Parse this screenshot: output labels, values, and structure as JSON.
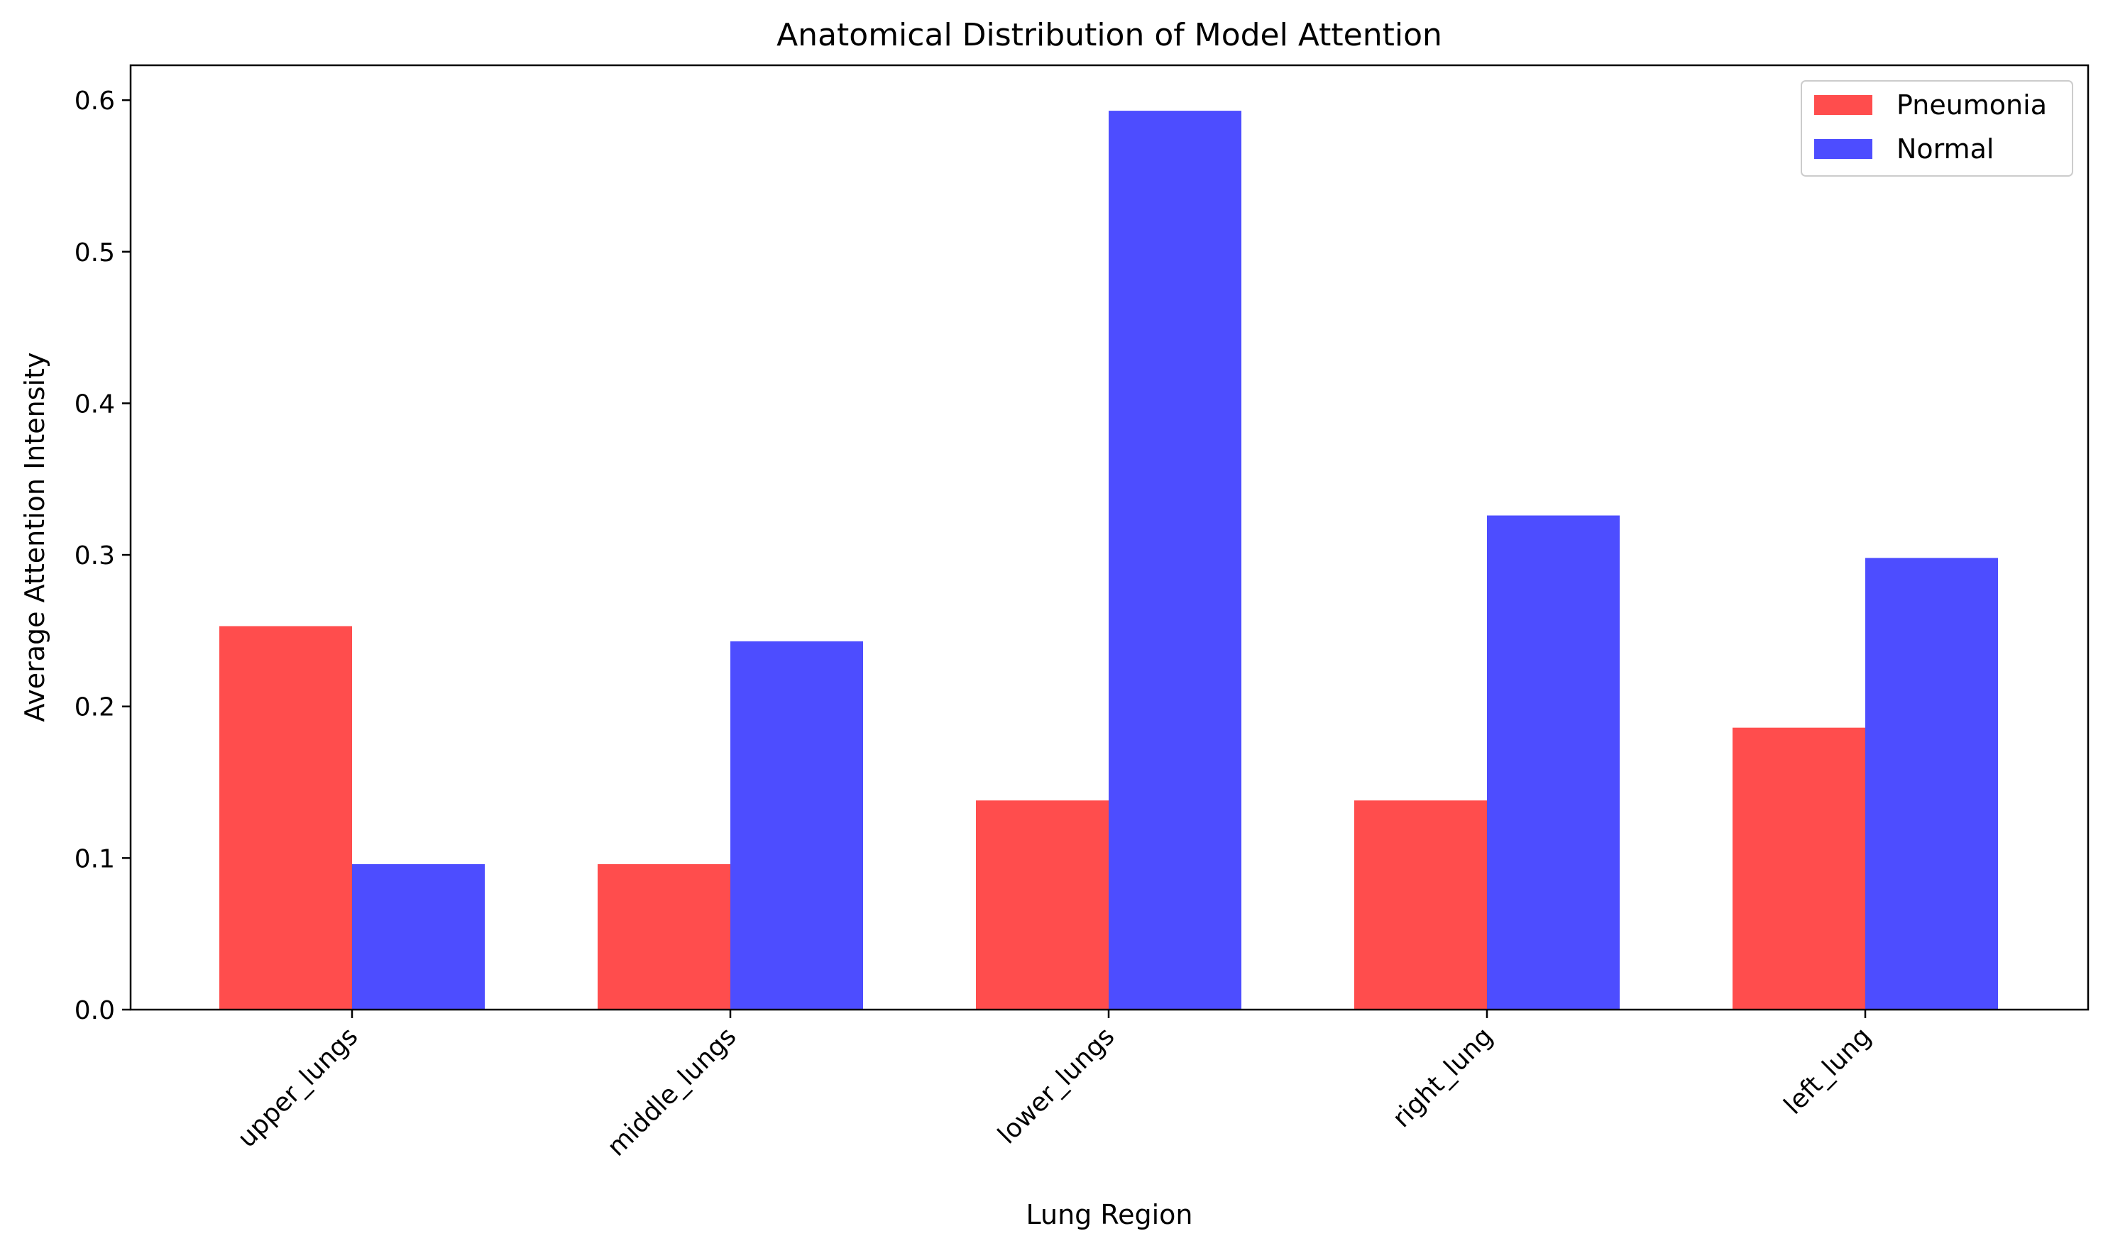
{
  "chart_data": {
    "type": "bar",
    "title": "Anatomical Distribution of Model Attention",
    "xlabel": "Lung Region",
    "ylabel": "Average Attention Intensity",
    "categories": [
      "upper_lungs",
      "middle_lungs",
      "lower_lungs",
      "right_lung",
      "left_lung"
    ],
    "series": [
      {
        "name": "Pneumonia",
        "color": "#ff4d4d",
        "values": [
          0.253,
          0.096,
          0.138,
          0.138,
          0.186
        ]
      },
      {
        "name": "Normal",
        "color": "#4d4dff",
        "values": [
          0.096,
          0.243,
          0.593,
          0.326,
          0.298
        ]
      }
    ],
    "ylim": [
      0,
      0.623
    ],
    "yticks": [
      0.0,
      0.1,
      0.2,
      0.3,
      0.4,
      0.5,
      0.6
    ],
    "ytick_labels": [
      "0.0",
      "0.1",
      "0.2",
      "0.3",
      "0.4",
      "0.5",
      "0.6"
    ],
    "grid": false,
    "legend_position": "top-right"
  }
}
